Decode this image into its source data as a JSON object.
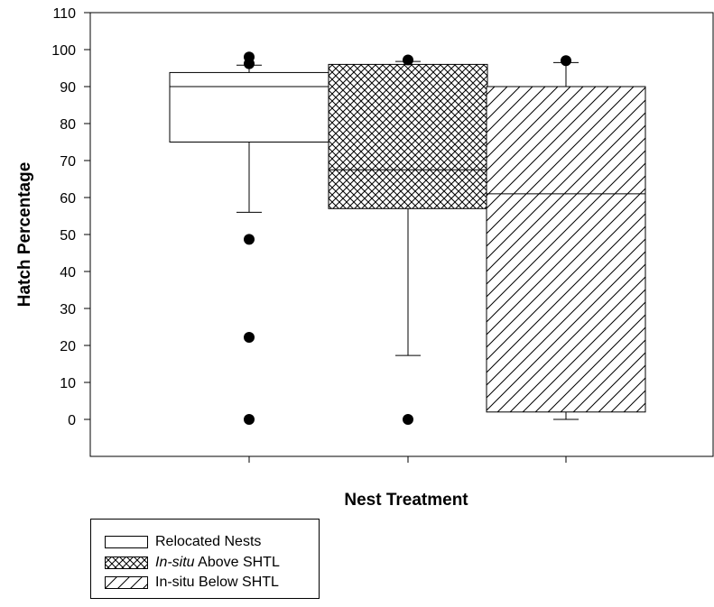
{
  "chart_data": {
    "type": "box",
    "xlabel": "Nest Treatment",
    "ylabel": "Hatch Percentage",
    "ylim": [
      -10,
      110
    ],
    "yticks": [
      0,
      10,
      20,
      30,
      40,
      50,
      60,
      70,
      80,
      90,
      100,
      110
    ],
    "grid": false,
    "legend_position": "bottom-left, below plot",
    "series": [
      {
        "name": "Relocated Nests",
        "pattern": "none",
        "q1": 75,
        "median": 90,
        "q3": 93.8,
        "whisker_low": 56,
        "whisker_high": 95.8,
        "outliers": [
          98,
          96.2,
          48.7,
          22.2,
          0
        ]
      },
      {
        "name": "In-situ Above SHTL",
        "pattern": "crosshatch",
        "q1": 57,
        "median": 67.5,
        "q3": 96,
        "whisker_low": 17.3,
        "whisker_high": 96.8,
        "outliers": [
          97.2,
          0
        ]
      },
      {
        "name": "In-situ Below SHTL",
        "pattern": "diagonal",
        "q1": 2,
        "median": 61,
        "q3": 90,
        "whisker_low": 0,
        "whisker_high": 96.5,
        "outliers": [
          97
        ]
      }
    ]
  },
  "legend": {
    "items": [
      {
        "label": "Relocated Nests"
      },
      {
        "label_italic": "In-situ",
        "label_rest": " Above SHTL"
      },
      {
        "label": "In-situ Below SHTL"
      }
    ]
  },
  "colors": {
    "line": "#000000",
    "background": "#ffffff",
    "outlier": "#000000"
  }
}
